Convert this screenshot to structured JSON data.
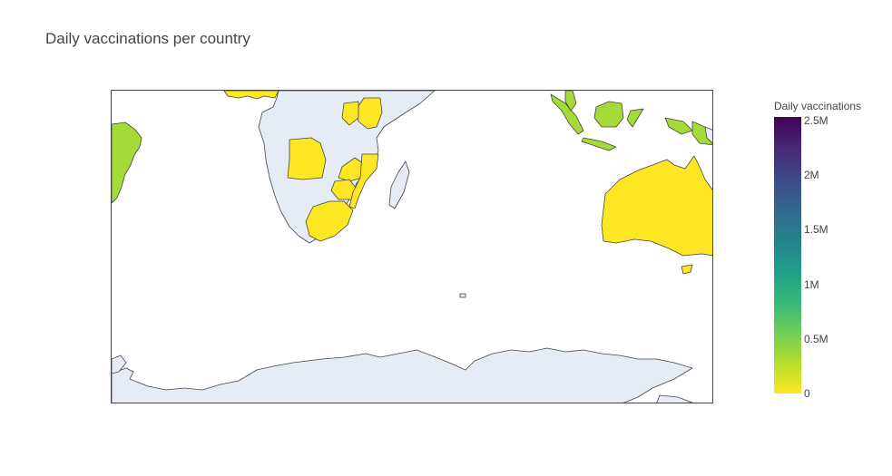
{
  "title": "Daily vaccinations per country",
  "colorbar": {
    "title": "Daily vaccinations",
    "ticks": [
      "2.5M",
      "2M",
      "1.5M",
      "1M",
      "0.5M",
      "0"
    ],
    "range": [
      0,
      2500000
    ],
    "colors": [
      "#fde725",
      "#b5de2b",
      "#6ece58",
      "#35b779",
      "#1f9e89",
      "#26828e",
      "#31688e",
      "#3e4989",
      "#482878",
      "#440154"
    ]
  },
  "map": {
    "land_color": "#e5ecf6",
    "ocean_color": "#ffffff",
    "border_color": "#444444",
    "countries": [
      {
        "name": "Brazil",
        "value": 300000,
        "color": "#a5db36"
      },
      {
        "name": "Indonesia",
        "value": 300000,
        "color": "#a5db36"
      },
      {
        "name": "Malaysia",
        "value": 200000,
        "color": "#a5db36"
      },
      {
        "name": "Papua New Guinea",
        "value": 250000,
        "color": "#a5db36"
      },
      {
        "name": "Australia",
        "value": 50000,
        "color": "#fde725"
      },
      {
        "name": "Angola",
        "value": 20000,
        "color": "#fde725"
      },
      {
        "name": "Zambia",
        "value": 20000,
        "color": "#fde725"
      },
      {
        "name": "Mozambique",
        "value": 20000,
        "color": "#fde725"
      },
      {
        "name": "Zimbabwe",
        "value": 20000,
        "color": "#fde725"
      },
      {
        "name": "South Africa",
        "value": 20000,
        "color": "#fde725"
      },
      {
        "name": "Kenya",
        "value": 20000,
        "color": "#fde725"
      },
      {
        "name": "Rwanda",
        "value": 20000,
        "color": "#fde725"
      }
    ]
  }
}
